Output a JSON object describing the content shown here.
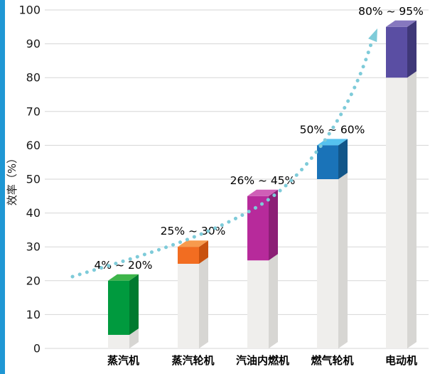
{
  "page": {
    "background": "#ffffff",
    "accent_strip_color": "#1f97d4"
  },
  "chart_data": {
    "type": "bar",
    "title": "",
    "xlabel": "",
    "ylabel": "效率（%）",
    "ylim": [
      0,
      100
    ],
    "yticks": [
      0,
      10,
      20,
      30,
      40,
      50,
      60,
      70,
      80,
      90,
      100
    ],
    "grid": true,
    "grid_color": "#d6d6d6",
    "legend": "none",
    "categories": [
      "蒸汽机",
      "蒸汽轮机",
      "汽油内燃机",
      "燃气轮机",
      "电动机"
    ],
    "series": [
      {
        "name": "efficiency_low",
        "values": [
          4,
          25,
          26,
          50,
          80
        ]
      },
      {
        "name": "efficiency_high",
        "values": [
          20,
          30,
          45,
          60,
          95
        ]
      }
    ],
    "range_labels": [
      "4% ~ 20%",
      "25% ~ 30%",
      "26% ~ 45%",
      "50% ~ 60%",
      "80% ~ 95%"
    ],
    "bar_colors": [
      {
        "front": "#009a3e",
        "top": "#3db54a",
        "side": "#007a2f"
      },
      {
        "front": "#f26d21",
        "top": "#f79a4d",
        "side": "#c8520f"
      },
      {
        "front": "#b72a9b",
        "top": "#cf5fb7",
        "side": "#8c1f76"
      },
      {
        "front": "#1a73b8",
        "top": "#56c2ef",
        "side": "#125689"
      },
      {
        "front": "#5a4ea3",
        "top": "#8678bf",
        "side": "#3f3878"
      }
    ],
    "base_column_color": {
      "front": "#efeeec",
      "side": "#d7d6d3"
    },
    "trend_arrow_color": "#7ecbd9",
    "text_color": "#1a1a1a"
  }
}
